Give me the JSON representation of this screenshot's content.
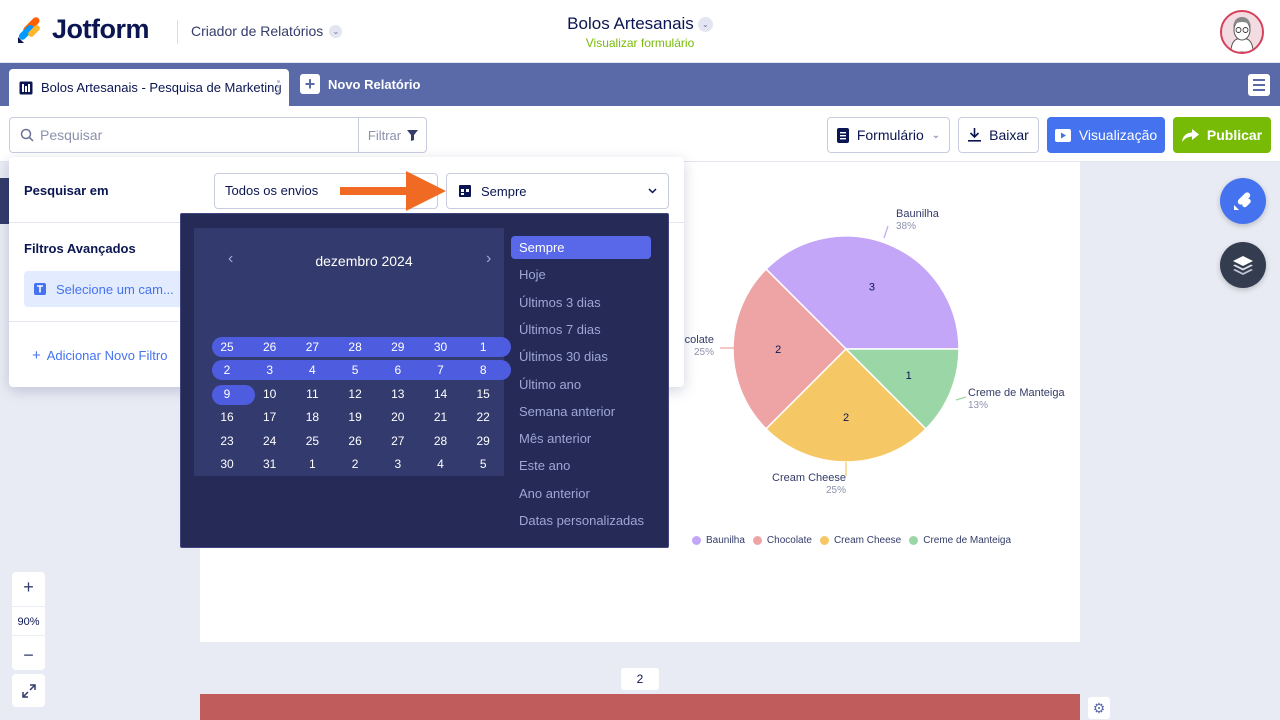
{
  "header": {
    "logo_text": "Jotform",
    "app_name": "Criador de Relatórios",
    "form_title": "Bolos Artesanais",
    "form_link": "Visualizar formulário"
  },
  "tabs": {
    "active_label": "Bolos Artesanais - Pesquisa de Marketing",
    "new_report_label": "Novo Relatório"
  },
  "toolbar": {
    "search_placeholder": "Pesquisar",
    "filter_label": "Filtrar",
    "form_label": "Formulário",
    "download_label": "Baixar",
    "preview_label": "Visualização",
    "publish_label": "Publicar"
  },
  "filter_panel": {
    "search_in_label": "Pesquisar em",
    "submissions_value": "Todos os envios",
    "date_value": "Sempre",
    "advanced_label": "Filtros Avançados",
    "field_placeholder": "Selecione um cam...",
    "add_filter_label": "Adicionar Novo Filtro"
  },
  "calendar": {
    "month_label": "dezembro 2024",
    "weeks": [
      [
        "25",
        "26",
        "27",
        "28",
        "29",
        "30",
        "1"
      ],
      [
        "2",
        "3",
        "4",
        "5",
        "6",
        "7",
        "8"
      ],
      [
        "9",
        "10",
        "11",
        "12",
        "13",
        "14",
        "15"
      ],
      [
        "16",
        "17",
        "18",
        "19",
        "20",
        "21",
        "22"
      ],
      [
        "23",
        "24",
        "25",
        "26",
        "27",
        "28",
        "29"
      ],
      [
        "30",
        "31",
        "1",
        "2",
        "3",
        "4",
        "5"
      ]
    ],
    "highlighted_weeks": [
      0,
      1
    ],
    "highlighted_day": "9",
    "presets": [
      "Sempre",
      "Hoje",
      "Últimos 3 dias",
      "Últimos 7 dias",
      "Últimos 30 dias",
      "Último ano",
      "Semana anterior",
      "Mês anterior",
      "Este ano",
      "Ano anterior",
      "Datas personalizadas"
    ],
    "active_preset": "Sempre"
  },
  "zoom": {
    "level": "90%"
  },
  "pagination": {
    "page": "2"
  },
  "colors": {
    "accent_blue": "#4573ef",
    "publish_green": "#78bb07",
    "tabbar": "#5a6aa8",
    "arrow_orange": "#f06a24"
  },
  "chart_data": {
    "type": "pie",
    "series": [
      {
        "label": "Baunilha",
        "value": 3,
        "percent": "38%",
        "color": "#c3a6f7"
      },
      {
        "label": "Chocolate",
        "value": 2,
        "percent": "25%",
        "color": "#eea4a4"
      },
      {
        "label": "Cream Cheese",
        "value": 2,
        "percent": "25%",
        "color": "#f5c765"
      },
      {
        "label": "Creme de Manteiga",
        "value": 1,
        "percent": "13%",
        "color": "#9bd7a6"
      }
    ],
    "legend_position": "bottom"
  }
}
